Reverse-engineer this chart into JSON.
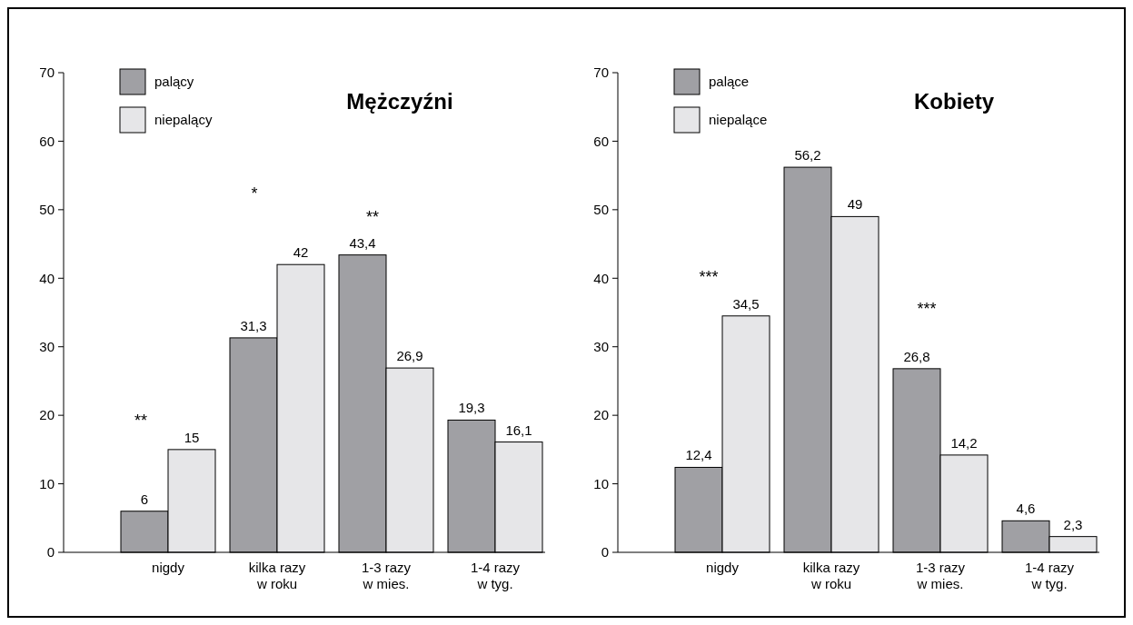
{
  "chart_data": [
    {
      "type": "bar",
      "title": "Mężczyźni",
      "categories": [
        "nigdy",
        "kilka razy\nw roku",
        "1-3 razy\nw mies.",
        "1-4 razy\nw tyg."
      ],
      "series": [
        {
          "name": "palący",
          "color": "#a0a0a4",
          "values": [
            6,
            31.3,
            43.4,
            19.3
          ],
          "value_labels": [
            "6",
            "31,3",
            "43,4",
            "19,3"
          ]
        },
        {
          "name": "niepalący",
          "color": "#e6e6e8",
          "values": [
            15,
            42,
            26.9,
            16.1
          ],
          "value_labels": [
            "15",
            "42",
            "26,9",
            "16,1"
          ]
        }
      ],
      "ylim": [
        0,
        70
      ],
      "yticks": [
        0,
        10,
        20,
        30,
        40,
        50,
        60,
        70
      ],
      "legend": "top left",
      "annotations": [
        "**",
        "*",
        "**"
      ]
    },
    {
      "type": "bar",
      "title": "Kobiety",
      "categories": [
        "nigdy",
        "kilka razy\nw roku",
        "1-3 razy\nw mies.",
        "1-4 razy\nw tyg."
      ],
      "series": [
        {
          "name": "palące",
          "color": "#a0a0a4",
          "values": [
            12.4,
            56.2,
            26.8,
            4.6
          ],
          "value_labels": [
            "12,4",
            "56,2",
            "26,8",
            "4,6"
          ]
        },
        {
          "name": "niepalące",
          "color": "#e6e6e8",
          "values": [
            34.5,
            49,
            14.2,
            2.3
          ],
          "value_labels": [
            "34,5",
            "49",
            "14,2",
            "2,3"
          ]
        }
      ],
      "ylim": [
        0,
        70
      ],
      "yticks": [
        0,
        10,
        20,
        30,
        40,
        50,
        60,
        70
      ],
      "legend": "top left",
      "annotations": [
        "***",
        "***"
      ]
    }
  ]
}
